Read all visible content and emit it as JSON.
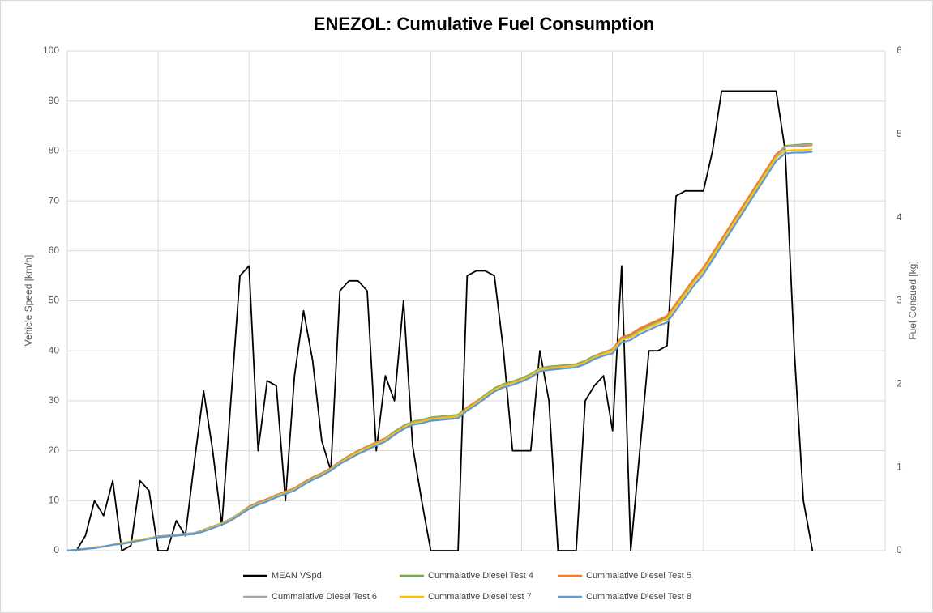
{
  "chart_data": {
    "type": "line",
    "title": "ENEZOL: Cumulative Fuel Consumption",
    "y_label": "Vehicle Speed [km/h]",
    "y2_label": "Fuel Consued [kg]",
    "categories": [
      null,
      null,
      null,
      null,
      null,
      null,
      null,
      null,
      null,
      null,
      null,
      null,
      null,
      null,
      null,
      null,
      null,
      null,
      null,
      null,
      null,
      null,
      null,
      null,
      null,
      null,
      null,
      null,
      null,
      null,
      null,
      null,
      null,
      null,
      null,
      null,
      null,
      null,
      null,
      null,
      null,
      null,
      null,
      null,
      null,
      null,
      null,
      null,
      null,
      null,
      null,
      null,
      null,
      null,
      null,
      null,
      null,
      null,
      null,
      null,
      null,
      null,
      null,
      null,
      null,
      null,
      null,
      null,
      null,
      null,
      null,
      null,
      null,
      null,
      null,
      null,
      null,
      null,
      null,
      null,
      null,
      null,
      null,
      null,
      null,
      null,
      null,
      null,
      null,
      null,
      null
    ],
    "ylim": [
      0,
      100
    ],
    "yticks": [
      0,
      10,
      20,
      30,
      40,
      50,
      60,
      70,
      80,
      90,
      100
    ],
    "y2lim": [
      0,
      6
    ],
    "y2ticks": [
      0,
      1,
      2,
      3,
      4,
      5,
      6
    ],
    "grid": true,
    "legend": "bottom",
    "series": [
      {
        "name": "MEAN VSpd",
        "color": "#000000",
        "values": [
          0,
          0,
          3,
          10,
          7,
          14,
          0,
          1,
          14,
          12,
          0,
          0,
          6,
          3,
          18,
          32,
          20,
          5,
          30,
          55,
          57,
          20,
          34,
          33,
          10,
          35,
          48,
          38,
          22,
          16,
          52,
          54,
          54,
          52,
          20,
          35,
          30,
          50,
          21,
          10,
          0,
          0,
          0,
          0,
          55,
          56,
          56,
          55,
          40,
          20,
          20,
          20,
          40,
          30,
          0,
          0,
          0,
          30,
          33,
          35,
          24,
          57,
          0,
          20,
          40,
          40,
          41,
          71,
          72,
          72,
          72,
          80,
          92,
          92,
          92,
          92,
          92,
          92,
          92,
          80,
          40,
          10,
          0,
          null,
          null,
          null,
          null,
          null,
          null,
          null,
          null
        ]
      },
      {
        "name": "Cummalative Diesel Test 4",
        "color": "#70ad47",
        "axis": "y2",
        "values": [
          0,
          0.01,
          0.02,
          0.04,
          0.05,
          0.07,
          0.09,
          0.11,
          0.13,
          0.15,
          0.17,
          0.18,
          0.19,
          0.2,
          0.21,
          0.25,
          0.29,
          0.33,
          0.38,
          0.45,
          0.53,
          0.58,
          0.61,
          0.66,
          0.7,
          0.75,
          0.82,
          0.88,
          0.93,
          0.99,
          1.07,
          1.14,
          1.2,
          1.25,
          1.3,
          1.35,
          1.43,
          1.5,
          1.55,
          1.57,
          1.6,
          1.61,
          1.62,
          1.63,
          1.72,
          1.79,
          1.87,
          1.95,
          2,
          2.03,
          2.07,
          2.12,
          2.19,
          2.21,
          2.22,
          2.23,
          2.24,
          2.28,
          2.34,
          2.38,
          2.42,
          2.55,
          2.58,
          2.65,
          2.7,
          2.75,
          2.8,
          2.95,
          3.1,
          3.25,
          3.38,
          3.55,
          3.72,
          3.89,
          4.06,
          4.23,
          4.4,
          4.57,
          4.74,
          4.86,
          4.87,
          4.88,
          4.89,
          null,
          null,
          null,
          null,
          null,
          null,
          null,
          null
        ]
      },
      {
        "name": "Cummalative Diesel Test 5",
        "color": "#ed7d31",
        "axis": "y2",
        "values": [
          0,
          0.01,
          0.02,
          0.04,
          0.05,
          0.07,
          0.09,
          0.11,
          0.13,
          0.15,
          0.17,
          0.18,
          0.19,
          0.2,
          0.21,
          0.25,
          0.29,
          0.33,
          0.38,
          0.45,
          0.53,
          0.58,
          0.62,
          0.67,
          0.71,
          0.75,
          0.82,
          0.88,
          0.93,
          0.99,
          1.07,
          1.14,
          1.2,
          1.25,
          1.3,
          1.35,
          1.42,
          1.49,
          1.54,
          1.56,
          1.59,
          1.6,
          1.61,
          1.62,
          1.72,
          1.79,
          1.86,
          1.94,
          1.99,
          2.02,
          2.06,
          2.11,
          2.18,
          2.2,
          2.21,
          2.22,
          2.23,
          2.27,
          2.33,
          2.38,
          2.42,
          2.56,
          2.6,
          2.67,
          2.72,
          2.77,
          2.82,
          2.97,
          3.12,
          3.27,
          3.4,
          3.57,
          3.74,
          3.91,
          4.08,
          4.25,
          4.42,
          4.59,
          4.76,
          4.85,
          4.86,
          4.86,
          4.87,
          null,
          null,
          null,
          null,
          null,
          null,
          null,
          null
        ]
      },
      {
        "name": "Cummalative Diesel Test 6",
        "color": "#a5a5a5",
        "axis": "y2",
        "values": [
          0,
          0.01,
          0.02,
          0.04,
          0.05,
          0.07,
          0.09,
          0.11,
          0.13,
          0.15,
          0.17,
          0.18,
          0.19,
          0.2,
          0.21,
          0.25,
          0.29,
          0.33,
          0.38,
          0.45,
          0.52,
          0.57,
          0.61,
          0.66,
          0.7,
          0.74,
          0.81,
          0.87,
          0.92,
          0.98,
          1.06,
          1.13,
          1.19,
          1.24,
          1.29,
          1.34,
          1.42,
          1.49,
          1.54,
          1.56,
          1.59,
          1.6,
          1.61,
          1.62,
          1.71,
          1.78,
          1.86,
          1.94,
          1.99,
          2.02,
          2.06,
          2.11,
          2.18,
          2.2,
          2.21,
          2.22,
          2.23,
          2.27,
          2.33,
          2.37,
          2.41,
          2.54,
          2.57,
          2.64,
          2.69,
          2.74,
          2.79,
          2.94,
          3.09,
          3.24,
          3.37,
          3.54,
          3.71,
          3.88,
          4.05,
          4.22,
          4.39,
          4.56,
          4.73,
          4.85,
          4.86,
          4.87,
          4.88,
          null,
          null,
          null,
          null,
          null,
          null,
          null,
          null
        ]
      },
      {
        "name": "Cummalative Diesel test 7",
        "color": "#ffc000",
        "axis": "y2",
        "values": [
          0,
          0.01,
          0.02,
          0.04,
          0.05,
          0.07,
          0.09,
          0.11,
          0.13,
          0.15,
          0.16,
          0.17,
          0.18,
          0.19,
          0.2,
          0.24,
          0.28,
          0.32,
          0.37,
          0.44,
          0.51,
          0.56,
          0.6,
          0.65,
          0.69,
          0.73,
          0.8,
          0.86,
          0.91,
          0.97,
          1.05,
          1.12,
          1.18,
          1.23,
          1.28,
          1.33,
          1.41,
          1.48,
          1.53,
          1.55,
          1.58,
          1.59,
          1.6,
          1.61,
          1.7,
          1.77,
          1.85,
          1.93,
          1.98,
          2.01,
          2.05,
          2.1,
          2.17,
          2.19,
          2.2,
          2.21,
          2.22,
          2.26,
          2.32,
          2.36,
          2.4,
          2.53,
          2.56,
          2.63,
          2.68,
          2.73,
          2.78,
          2.93,
          3.08,
          3.23,
          3.36,
          3.53,
          3.7,
          3.87,
          4.04,
          4.21,
          4.38,
          4.55,
          4.72,
          4.8,
          4.81,
          4.81,
          4.82,
          null,
          null,
          null,
          null,
          null,
          null,
          null,
          null
        ]
      },
      {
        "name": "Cummalative Diesel Test 8",
        "color": "#5b9bd5",
        "axis": "y2",
        "values": [
          0,
          0.01,
          0.02,
          0.03,
          0.05,
          0.07,
          0.08,
          0.1,
          0.12,
          0.14,
          0.16,
          0.17,
          0.18,
          0.19,
          0.2,
          0.23,
          0.27,
          0.31,
          0.36,
          0.43,
          0.5,
          0.55,
          0.59,
          0.64,
          0.68,
          0.72,
          0.79,
          0.85,
          0.9,
          0.96,
          1.04,
          1.1,
          1.16,
          1.21,
          1.26,
          1.31,
          1.39,
          1.46,
          1.51,
          1.53,
          1.56,
          1.57,
          1.58,
          1.59,
          1.68,
          1.75,
          1.83,
          1.91,
          1.96,
          1.99,
          2.03,
          2.08,
          2.15,
          2.17,
          2.18,
          2.19,
          2.2,
          2.24,
          2.3,
          2.34,
          2.37,
          2.5,
          2.53,
          2.6,
          2.65,
          2.7,
          2.74,
          2.89,
          3.04,
          3.19,
          3.32,
          3.49,
          3.66,
          3.83,
          4,
          4.17,
          4.34,
          4.51,
          4.68,
          4.77,
          4.78,
          4.78,
          4.79,
          null,
          null,
          null,
          null,
          null,
          null,
          null,
          null
        ]
      }
    ]
  }
}
